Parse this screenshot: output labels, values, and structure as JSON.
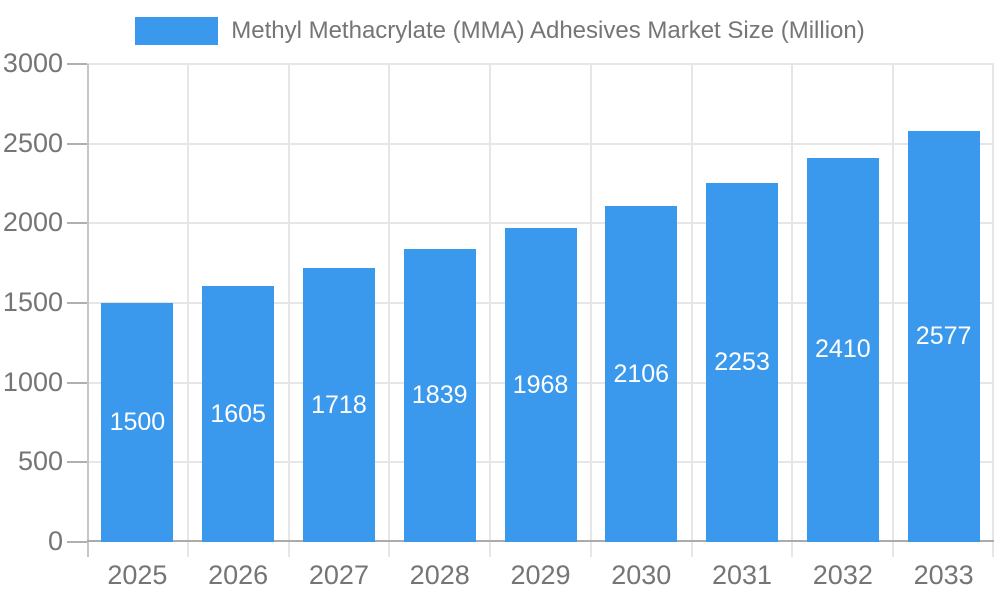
{
  "legend": {
    "label": "Methyl Methacrylate (MMA) Adhesives Market Size (Million)"
  },
  "chart_data": {
    "type": "bar",
    "title": "Methyl Methacrylate (MMA) Adhesives Market Size (Million)",
    "categories": [
      "2025",
      "2026",
      "2027",
      "2028",
      "2029",
      "2030",
      "2031",
      "2032",
      "2033"
    ],
    "values": [
      1500,
      1605,
      1718,
      1839,
      1968,
      2106,
      2253,
      2410,
      2577
    ],
    "series": [
      {
        "name": "Methyl Methacrylate (MMA) Adhesives Market Size (Million)",
        "values": [
          1500,
          1605,
          1718,
          1839,
          1968,
          2106,
          2253,
          2410,
          2577
        ]
      }
    ],
    "xlabel": "",
    "ylabel": "",
    "ylim": [
      0,
      3000
    ],
    "yticks": [
      0,
      500,
      1000,
      1500,
      2000,
      2500,
      3000
    ],
    "grid": true,
    "legend_position": "top",
    "bar_label_position": "inside-center",
    "colors": {
      "bar": "#3A99EC",
      "bar_label": "#FFFFFF",
      "axis_text": "#757575",
      "gridline": "#E6E6E6",
      "baseline": "#ABABAB",
      "y_axis_line": "#C6C6C6",
      "y_tick_mark": "#B0B0B0",
      "background": "#FFFFFF"
    }
  }
}
